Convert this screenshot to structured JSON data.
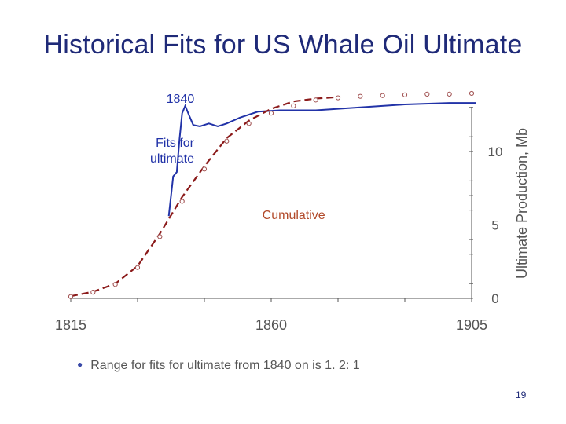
{
  "slide": {
    "title": "Historical Fits for US Whale Oil Ultimate",
    "bullet": "Range for fits for ultimate from 1840 on is 1. 2: 1",
    "page_number": "19"
  },
  "colors": {
    "title": "#1f2a78",
    "fits_line": "#2233a8",
    "cumulative_dash": "#8b1a1a",
    "cumulative_markers": "#a05050",
    "annotation_fits": "#2233a8",
    "annotation_cumulative": "#b24a2a",
    "axis": "#555555"
  },
  "chart_data": {
    "type": "line",
    "title": "",
    "xlabel": "",
    "ylabel": "Ultimate Production, Mb",
    "xlim": [
      1815,
      1905
    ],
    "ylim": [
      0,
      14
    ],
    "x_ticks": [
      1815,
      1860,
      1905
    ],
    "y_ticks": [
      0,
      5,
      10
    ],
    "grid": false,
    "annotations": [
      {
        "text": "1840",
        "x": 1840,
        "y": 13.3
      },
      {
        "text": "Fits for\nultimate",
        "x": 1836,
        "y": 10.3
      },
      {
        "text": "Cumulative",
        "x": 1858,
        "y": 5.4
      }
    ],
    "series": [
      {
        "name": "Fits for ultimate",
        "style": "solid",
        "points": [
          [
            1837,
            5.6
          ],
          [
            1838,
            8.3
          ],
          [
            1838.8,
            8.6
          ],
          [
            1839.4,
            10.8
          ],
          [
            1840,
            12.6
          ],
          [
            1840.7,
            13.1
          ],
          [
            1841.5,
            12.5
          ],
          [
            1842.5,
            11.8
          ],
          [
            1844,
            11.7
          ],
          [
            1846,
            11.9
          ],
          [
            1848,
            11.7
          ],
          [
            1850,
            11.9
          ],
          [
            1853,
            12.3
          ],
          [
            1857,
            12.7
          ],
          [
            1862,
            12.8
          ],
          [
            1870,
            12.8
          ],
          [
            1880,
            13.0
          ],
          [
            1890,
            13.2
          ],
          [
            1900,
            13.3
          ],
          [
            1906,
            13.3
          ]
        ]
      },
      {
        "name": "Cumulative",
        "style": "dashed",
        "points": [
          [
            1815,
            0.15
          ],
          [
            1820,
            0.45
          ],
          [
            1825,
            1.0
          ],
          [
            1830,
            2.2
          ],
          [
            1835,
            4.4
          ],
          [
            1840,
            6.9
          ],
          [
            1845,
            9.0
          ],
          [
            1850,
            10.9
          ],
          [
            1855,
            12.1
          ],
          [
            1860,
            12.9
          ],
          [
            1865,
            13.4
          ],
          [
            1870,
            13.6
          ],
          [
            1875,
            13.7
          ]
        ]
      },
      {
        "name": "Cumulative data",
        "style": "markers",
        "points": [
          [
            1815,
            0.12
          ],
          [
            1820,
            0.42
          ],
          [
            1825,
            0.95
          ],
          [
            1830,
            2.1
          ],
          [
            1835,
            4.2
          ],
          [
            1840,
            6.6
          ],
          [
            1845,
            8.8
          ],
          [
            1850,
            10.7
          ],
          [
            1855,
            11.9
          ],
          [
            1860,
            12.6
          ],
          [
            1865,
            13.1
          ],
          [
            1870,
            13.5
          ],
          [
            1875,
            13.65
          ],
          [
            1880,
            13.75
          ],
          [
            1885,
            13.8
          ],
          [
            1890,
            13.85
          ],
          [
            1895,
            13.9
          ],
          [
            1900,
            13.9
          ],
          [
            1905,
            13.95
          ]
        ]
      }
    ]
  }
}
